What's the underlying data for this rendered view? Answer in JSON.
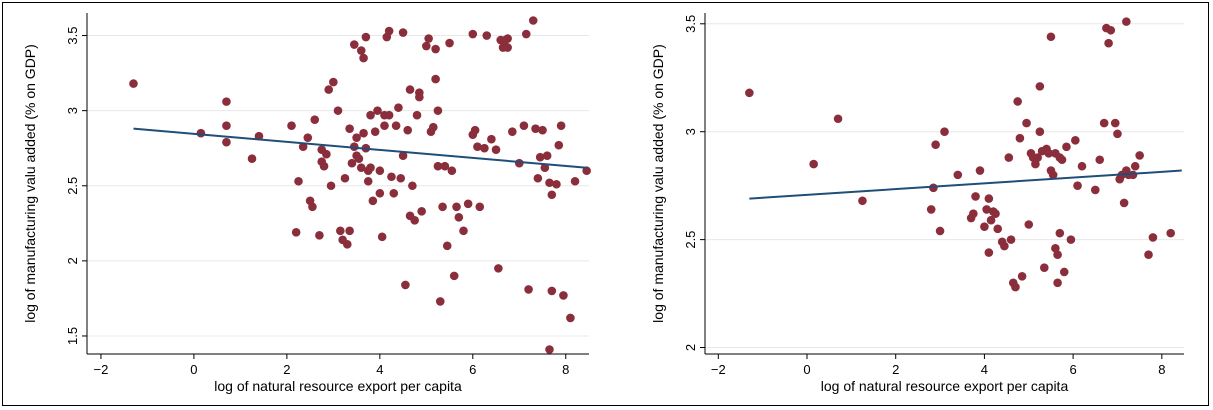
{
  "chart_data": [
    {
      "type": "scatter",
      "xlabel": "log of natural resource export per capita",
      "ylabel": "log of manufacturing valu added (% on GDP)",
      "xlim": [
        -2.3,
        8.5
      ],
      "ylim": [
        1.38,
        3.65
      ],
      "xticks": [
        -2,
        0,
        2,
        4,
        6,
        8
      ],
      "yticks": [
        1.5,
        2,
        2.5,
        3,
        3.5
      ],
      "xtick_labels": [
        "−2",
        "0",
        "2",
        "4",
        "6",
        "8"
      ],
      "ytick_labels": [
        "1.5",
        "2",
        "2.5",
        "3",
        "3.5"
      ],
      "grid": "horizontal",
      "point_color": "#8b2e3c",
      "line_color": "#1f4e79",
      "fit_line": {
        "x": [
          -1.3,
          8.45
        ],
        "y": [
          2.88,
          2.62
        ]
      },
      "points": [
        [
          -1.3,
          3.18
        ],
        [
          0.15,
          2.85
        ],
        [
          0.7,
          3.06
        ],
        [
          0.7,
          2.9
        ],
        [
          0.7,
          2.79
        ],
        [
          1.25,
          2.68
        ],
        [
          1.4,
          2.83
        ],
        [
          2.1,
          2.9
        ],
        [
          2.2,
          2.19
        ],
        [
          2.25,
          2.53
        ],
        [
          2.35,
          2.76
        ],
        [
          2.45,
          2.82
        ],
        [
          2.5,
          2.4
        ],
        [
          2.55,
          2.36
        ],
        [
          2.6,
          2.94
        ],
        [
          2.7,
          2.17
        ],
        [
          2.75,
          2.74
        ],
        [
          2.75,
          2.66
        ],
        [
          2.8,
          2.63
        ],
        [
          2.85,
          2.71
        ],
        [
          2.9,
          3.14
        ],
        [
          2.95,
          2.5
        ],
        [
          3.0,
          3.19
        ],
        [
          3.1,
          3.0
        ],
        [
          3.15,
          2.2
        ],
        [
          3.2,
          2.14
        ],
        [
          3.25,
          2.55
        ],
        [
          3.3,
          2.11
        ],
        [
          3.35,
          2.2
        ],
        [
          3.35,
          2.88
        ],
        [
          3.4,
          2.65
        ],
        [
          3.45,
          3.44
        ],
        [
          3.45,
          2.76
        ],
        [
          3.5,
          2.82
        ],
        [
          3.5,
          2.7
        ],
        [
          3.55,
          2.68
        ],
        [
          3.6,
          2.62
        ],
        [
          3.6,
          3.4
        ],
        [
          3.65,
          3.35
        ],
        [
          3.65,
          2.85
        ],
        [
          3.7,
          3.49
        ],
        [
          3.7,
          2.75
        ],
        [
          3.75,
          2.53
        ],
        [
          3.75,
          2.6
        ],
        [
          3.8,
          2.62
        ],
        [
          3.8,
          2.97
        ],
        [
          3.85,
          2.4
        ],
        [
          3.9,
          2.86
        ],
        [
          3.95,
          3.0
        ],
        [
          4.0,
          2.45
        ],
        [
          4.0,
          2.6
        ],
        [
          4.05,
          2.16
        ],
        [
          4.1,
          2.9
        ],
        [
          4.1,
          2.97
        ],
        [
          4.15,
          3.49
        ],
        [
          4.2,
          3.53
        ],
        [
          4.2,
          2.97
        ],
        [
          4.25,
          2.56
        ],
        [
          4.3,
          2.45
        ],
        [
          4.35,
          2.9
        ],
        [
          4.4,
          3.02
        ],
        [
          4.45,
          2.55
        ],
        [
          4.5,
          3.52
        ],
        [
          4.5,
          2.7
        ],
        [
          4.55,
          1.84
        ],
        [
          4.6,
          2.87
        ],
        [
          4.65,
          3.14
        ],
        [
          4.65,
          2.3
        ],
        [
          4.7,
          2.5
        ],
        [
          4.75,
          2.27
        ],
        [
          4.8,
          2.97
        ],
        [
          4.85,
          3.09
        ],
        [
          4.85,
          3.12
        ],
        [
          4.9,
          2.33
        ],
        [
          5.0,
          3.43
        ],
        [
          5.05,
          3.48
        ],
        [
          5.1,
          2.86
        ],
        [
          5.15,
          2.89
        ],
        [
          5.2,
          3.41
        ],
        [
          5.2,
          3.21
        ],
        [
          5.25,
          3.0
        ],
        [
          5.25,
          2.63
        ],
        [
          5.3,
          1.73
        ],
        [
          5.35,
          2.36
        ],
        [
          5.4,
          2.63
        ],
        [
          5.45,
          2.1
        ],
        [
          5.5,
          3.45
        ],
        [
          5.55,
          2.6
        ],
        [
          5.6,
          1.9
        ],
        [
          5.65,
          2.36
        ],
        [
          5.7,
          2.29
        ],
        [
          5.8,
          2.2
        ],
        [
          5.9,
          2.38
        ],
        [
          6.0,
          3.51
        ],
        [
          6.0,
          2.84
        ],
        [
          6.05,
          2.87
        ],
        [
          6.1,
          2.76
        ],
        [
          6.15,
          2.36
        ],
        [
          6.25,
          2.75
        ],
        [
          6.3,
          3.5
        ],
        [
          6.4,
          2.81
        ],
        [
          6.5,
          2.74
        ],
        [
          6.55,
          1.95
        ],
        [
          6.6,
          3.47
        ],
        [
          6.65,
          3.42
        ],
        [
          6.7,
          3.47
        ],
        [
          6.75,
          3.48
        ],
        [
          6.75,
          3.42
        ],
        [
          6.85,
          2.86
        ],
        [
          7.0,
          2.65
        ],
        [
          7.1,
          2.9
        ],
        [
          7.15,
          3.51
        ],
        [
          7.2,
          1.81
        ],
        [
          7.3,
          3.6
        ],
        [
          7.35,
          2.88
        ],
        [
          7.4,
          2.55
        ],
        [
          7.45,
          2.69
        ],
        [
          7.5,
          2.87
        ],
        [
          7.55,
          2.62
        ],
        [
          7.6,
          2.7
        ],
        [
          7.65,
          1.41
        ],
        [
          7.65,
          2.52
        ],
        [
          7.7,
          1.8
        ],
        [
          7.7,
          2.44
        ],
        [
          7.8,
          2.51
        ],
        [
          7.85,
          2.77
        ],
        [
          7.9,
          2.9
        ],
        [
          7.95,
          1.77
        ],
        [
          8.1,
          1.62
        ],
        [
          8.2,
          2.53
        ],
        [
          8.45,
          2.6
        ]
      ]
    },
    {
      "type": "scatter",
      "xlabel": "log of natural resource export per capita",
      "ylabel": "log of manufacturing valu added (% on GDP)",
      "xlim": [
        -2.3,
        8.5
      ],
      "ylim": [
        1.97,
        3.55
      ],
      "xticks": [
        -2,
        0,
        2,
        4,
        6,
        8
      ],
      "yticks": [
        2,
        2.5,
        3,
        3.5
      ],
      "xtick_labels": [
        "−2",
        "0",
        "2",
        "4",
        "6",
        "8"
      ],
      "ytick_labels": [
        "2",
        "2.5",
        "3",
        "3.5"
      ],
      "grid": "horizontal",
      "point_color": "#8b2e3c",
      "line_color": "#1f4e79",
      "fit_line": {
        "x": [
          -1.3,
          8.45
        ],
        "y": [
          2.69,
          2.82
        ]
      },
      "points": [
        [
          -1.3,
          3.18
        ],
        [
          0.15,
          2.85
        ],
        [
          0.7,
          3.06
        ],
        [
          1.25,
          2.68
        ],
        [
          2.8,
          2.64
        ],
        [
          2.85,
          2.74
        ],
        [
          2.9,
          2.94
        ],
        [
          3.0,
          2.54
        ],
        [
          3.1,
          3.0
        ],
        [
          3.4,
          2.8
        ],
        [
          3.7,
          2.6
        ],
        [
          3.75,
          2.62
        ],
        [
          3.8,
          2.7
        ],
        [
          3.9,
          2.82
        ],
        [
          4.0,
          2.56
        ],
        [
          4.05,
          2.64
        ],
        [
          4.1,
          2.69
        ],
        [
          4.1,
          2.44
        ],
        [
          4.15,
          2.59
        ],
        [
          4.2,
          2.63
        ],
        [
          4.25,
          2.62
        ],
        [
          4.3,
          2.55
        ],
        [
          4.4,
          2.49
        ],
        [
          4.45,
          2.47
        ],
        [
          4.55,
          2.88
        ],
        [
          4.6,
          2.5
        ],
        [
          4.65,
          2.3
        ],
        [
          4.7,
          2.28
        ],
        [
          4.75,
          3.14
        ],
        [
          4.8,
          2.97
        ],
        [
          4.85,
          2.33
        ],
        [
          4.95,
          3.04
        ],
        [
          5.0,
          2.57
        ],
        [
          5.05,
          2.9
        ],
        [
          5.1,
          2.88
        ],
        [
          5.15,
          2.85
        ],
        [
          5.2,
          2.88
        ],
        [
          5.25,
          3.21
        ],
        [
          5.25,
          3.0
        ],
        [
          5.3,
          2.91
        ],
        [
          5.35,
          2.37
        ],
        [
          5.4,
          2.92
        ],
        [
          5.45,
          2.9
        ],
        [
          5.5,
          3.44
        ],
        [
          5.5,
          2.82
        ],
        [
          5.55,
          2.8
        ],
        [
          5.6,
          2.46
        ],
        [
          5.6,
          2.9
        ],
        [
          5.65,
          2.3
        ],
        [
          5.65,
          2.43
        ],
        [
          5.7,
          2.88
        ],
        [
          5.7,
          2.53
        ],
        [
          5.75,
          2.87
        ],
        [
          5.8,
          2.35
        ],
        [
          5.85,
          2.93
        ],
        [
          5.95,
          2.5
        ],
        [
          6.05,
          2.96
        ],
        [
          6.1,
          2.75
        ],
        [
          6.2,
          2.84
        ],
        [
          6.5,
          2.73
        ],
        [
          6.6,
          2.87
        ],
        [
          6.7,
          3.04
        ],
        [
          6.75,
          3.48
        ],
        [
          6.8,
          3.41
        ],
        [
          6.85,
          3.47
        ],
        [
          6.95,
          3.04
        ],
        [
          7.0,
          2.99
        ],
        [
          7.05,
          2.78
        ],
        [
          7.1,
          2.8
        ],
        [
          7.15,
          2.67
        ],
        [
          7.2,
          3.51
        ],
        [
          7.2,
          2.82
        ],
        [
          7.25,
          2.8
        ],
        [
          7.35,
          2.8
        ],
        [
          7.4,
          2.84
        ],
        [
          7.5,
          2.89
        ],
        [
          7.7,
          2.43
        ],
        [
          7.8,
          2.51
        ],
        [
          8.2,
          2.53
        ]
      ]
    }
  ]
}
